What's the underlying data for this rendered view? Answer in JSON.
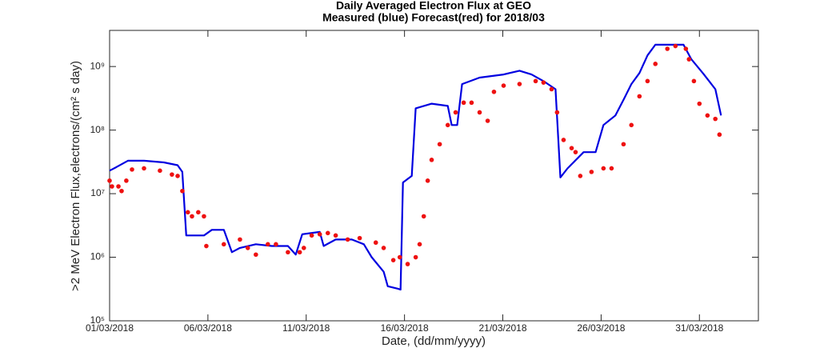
{
  "chart_data": {
    "type": "line",
    "title": "Daily Averaged Electron Flux at GEO",
    "subtitle": "Measured (blue) Forecast(red) for 2018/03",
    "xlabel": "Date, (dd/mm/yyyy)",
    "ylabel": ">2 MeV Electron Flux,electrons/(cm² s day)",
    "yscale": "log",
    "xlim": [
      1,
      34
    ],
    "ylim": [
      100000,
      3700000000
    ],
    "xticks": [
      {
        "value": 1,
        "label": "01/03/2018"
      },
      {
        "value": 6,
        "label": "06/03/2018"
      },
      {
        "value": 11,
        "label": "11/03/2018"
      },
      {
        "value": 16,
        "label": "16/03/2018"
      },
      {
        "value": 21,
        "label": "21/03/2018"
      },
      {
        "value": 26,
        "label": "26/03/2018"
      },
      {
        "value": 31,
        "label": "31/03/2018"
      }
    ],
    "yticks": [
      {
        "value": 100000,
        "label": "10⁵"
      },
      {
        "value": 1000000,
        "label": "10⁶"
      },
      {
        "value": 10000000,
        "label": "10⁷"
      },
      {
        "value": 100000000,
        "label": "10⁸"
      },
      {
        "value": 1000000000,
        "label": "10⁹"
      }
    ],
    "series": [
      {
        "style": "line",
        "color": "#0000e0",
        "x": [
          1.0,
          1.33,
          1.93,
          2.75,
          3.76,
          4.46,
          4.7,
          4.9,
          5.8,
          6.2,
          6.81,
          7.22,
          7.63,
          8.44,
          9.25,
          10.07,
          10.47,
          10.8,
          11.69,
          11.89,
          12.5,
          13.32,
          13.93,
          14.33,
          14.94,
          15.15,
          15.67,
          15.8,
          15.92,
          16.37,
          16.57,
          17.38,
          18.2,
          18.4,
          18.68,
          18.93,
          19.82,
          21.04,
          21.85,
          22.46,
          23.07,
          23.68,
          23.93,
          24.29,
          25.11,
          25.72,
          26.12,
          26.73,
          27.14,
          27.54,
          27.95,
          28.36,
          28.76,
          30.19,
          30.59,
          31.2,
          31.81,
          32.1
        ],
        "values": [
          23000000,
          26000000,
          33000000,
          33000000,
          31000000,
          28000000,
          22000000,
          2200000,
          2200000,
          2700000,
          2700000,
          1200000,
          1400000,
          1600000,
          1500000,
          1500000,
          1100000,
          2300000,
          2500000,
          1500000,
          1900000,
          1900000,
          1600000,
          1000000,
          590000,
          350000,
          320000,
          310000,
          15000000,
          19000000,
          220000000,
          260000000,
          240000000,
          120000000,
          120000000,
          530000000,
          670000000,
          750000000,
          860000000,
          750000000,
          590000000,
          440000000,
          18000000,
          25000000,
          45000000,
          45000000,
          120000000,
          170000000,
          300000000,
          530000000,
          790000000,
          1500000000,
          2200000000,
          2200000000,
          1300000000,
          770000000,
          440000000,
          170000000
        ]
      },
      {
        "style": "dots",
        "color": "#ee1111",
        "x": [
          1.0,
          1.12,
          1.45,
          1.61,
          1.85,
          2.14,
          2.75,
          3.56,
          4.17,
          4.46,
          4.7,
          4.98,
          5.19,
          5.51,
          5.8,
          5.92,
          6.81,
          7.63,
          8.03,
          8.44,
          9.05,
          9.46,
          10.07,
          10.67,
          10.88,
          11.28,
          11.69,
          12.1,
          12.5,
          13.11,
          13.72,
          14.54,
          14.94,
          15.43,
          15.76,
          16.16,
          16.57,
          16.77,
          16.98,
          17.18,
          17.38,
          17.79,
          18.2,
          18.6,
          19.01,
          19.41,
          19.82,
          20.23,
          20.55,
          21.04,
          21.85,
          22.67,
          23.07,
          23.48,
          23.76,
          24.09,
          24.5,
          24.7,
          24.94,
          25.51,
          26.12,
          26.53,
          27.14,
          27.54,
          27.95,
          28.36,
          28.76,
          29.37,
          29.78,
          30.31,
          30.47,
          30.72,
          31.0,
          31.41,
          31.81,
          32.02
        ],
        "values": [
          16000000,
          13000000,
          13000000,
          11000000,
          16000000,
          24000000,
          25000000,
          23000000,
          20000000,
          19000000,
          11000000,
          5100000,
          4400000,
          5100000,
          4400000,
          1500000,
          1600000,
          1900000,
          1400000,
          1100000,
          1600000,
          1600000,
          1200000,
          1200000,
          1400000,
          2200000,
          2300000,
          2400000,
          2200000,
          1900000,
          2000000,
          1700000,
          1400000,
          900000,
          1000000,
          780000,
          1000000,
          1600000,
          4400000,
          16000000,
          34000000,
          60000000,
          120000000,
          190000000,
          270000000,
          270000000,
          190000000,
          140000000,
          400000000,
          500000000,
          530000000,
          590000000,
          560000000,
          440000000,
          190000000,
          70000000,
          52000000,
          45000000,
          19000000,
          22000000,
          25000000,
          25000000,
          60000000,
          120000000,
          340000000,
          590000000,
          1100000000,
          1900000000,
          2100000000,
          1900000000,
          1300000000,
          590000000,
          260000000,
          170000000,
          150000000,
          85000000
        ]
      }
    ]
  }
}
